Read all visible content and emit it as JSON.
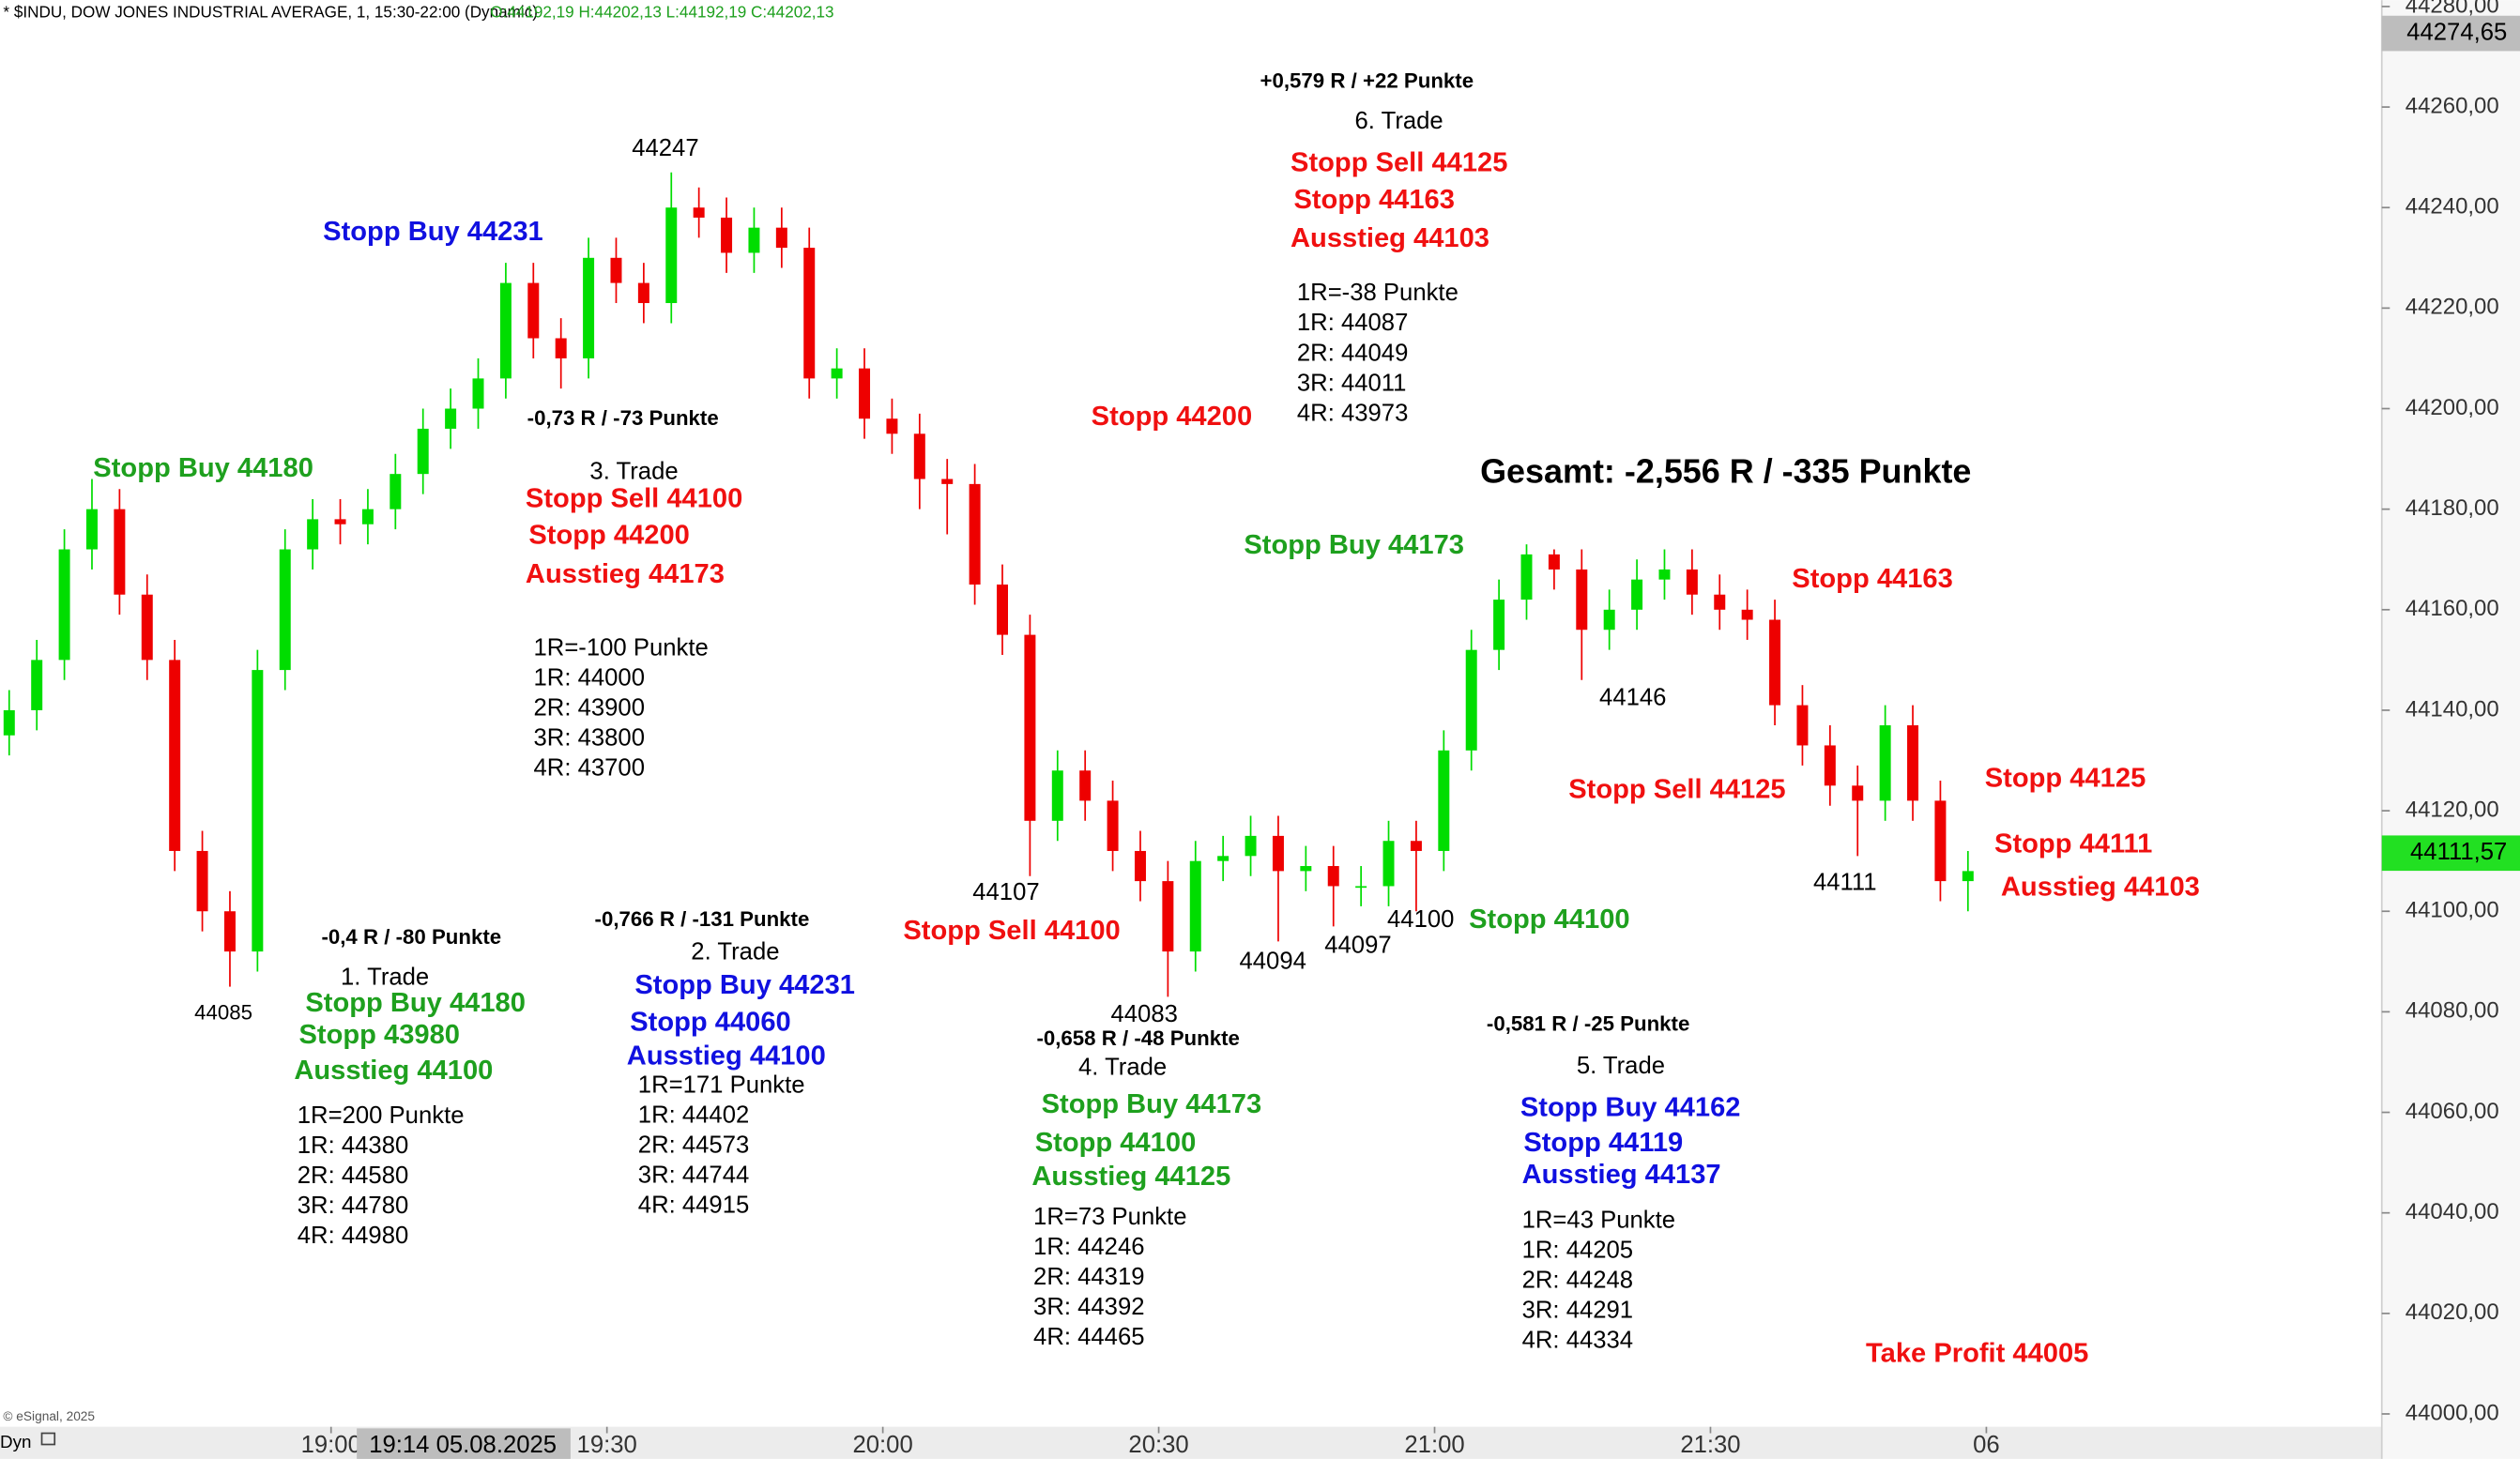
{
  "chart_data": {
    "type": "candlestick",
    "header": "* $INDU, DOW JONES INDUSTRIAL AVERAGE, 1, 15:30-22:00 (Dynamic)",
    "ohlc_label": "O:44192,19 H:44202,13 L:44192,19 C:44202,13",
    "up_color": "#00dd00",
    "down_color": "#ee0000",
    "x": [
      "18:25",
      "18:28",
      "18:31",
      "18:34",
      "18:37",
      "18:40",
      "18:43",
      "18:46",
      "18:49",
      "18:52",
      "18:55",
      "18:58",
      "19:01",
      "19:04",
      "19:07",
      "19:10",
      "19:13",
      "19:16",
      "19:19",
      "19:22",
      "19:25",
      "19:28",
      "19:31",
      "19:34",
      "19:37",
      "19:40",
      "19:43",
      "19:46",
      "19:49",
      "19:52",
      "19:55",
      "19:58",
      "20:01",
      "20:04",
      "20:07",
      "20:10",
      "20:13",
      "20:16",
      "20:19",
      "20:22",
      "20:25",
      "20:28",
      "20:31",
      "20:34",
      "20:37",
      "20:40",
      "20:43",
      "20:46",
      "20:49",
      "20:52",
      "20:55",
      "20:58",
      "21:01",
      "21:04",
      "21:07",
      "21:10",
      "21:13",
      "21:16",
      "21:19",
      "21:22",
      "21:25",
      "21:28",
      "21:31",
      "21:34",
      "21:37",
      "21:40",
      "21:43",
      "21:46",
      "21:49",
      "21:52",
      "21:55",
      "21:58"
    ],
    "open": [
      44135,
      44140,
      44150,
      44172,
      44180,
      44163,
      44150,
      44112,
      44100,
      44092,
      44148,
      44172,
      44178,
      44177,
      44180,
      44187,
      44196,
      44200,
      44206,
      44225,
      44214,
      44210,
      44230,
      44225,
      44221,
      44240,
      44238,
      44231,
      44236,
      44232,
      44206,
      44208,
      44198,
      44195,
      44186,
      44185,
      44165,
      44155,
      44118,
      44128,
      44122,
      44112,
      44106,
      44092,
      44110,
      44111,
      44115,
      44108,
      44109,
      44105,
      44105,
      44114,
      44112,
      44132,
      44152,
      44162,
      44171,
      44168,
      44156,
      44160,
      44166,
      44168,
      44163,
      44160,
      44158,
      44141,
      44133,
      44125,
      44122,
      44137,
      44122,
      44106
    ],
    "high": [
      44144,
      44154,
      44176,
      44186,
      44184,
      44167,
      44154,
      44116,
      44104,
      44152,
      44176,
      44182,
      44182,
      44184,
      44191,
      44200,
      44204,
      44210,
      44229,
      44229,
      44218,
      44234,
      44234,
      44229,
      44247,
      44244,
      44242,
      44240,
      44240,
      44236,
      44212,
      44212,
      44202,
      44199,
      44190,
      44189,
      44169,
      44159,
      44132,
      44132,
      44126,
      44116,
      44110,
      44114,
      44115,
      44119,
      44119,
      44113,
      44113,
      44109,
      44118,
      44118,
      44136,
      44156,
      44166,
      44173,
      44172,
      44172,
      44164,
      44170,
      44172,
      44172,
      44167,
      44164,
      44162,
      44145,
      44137,
      44129,
      44141,
      44141,
      44126,
      44112
    ],
    "low": [
      44131,
      44136,
      44146,
      44168,
      44159,
      44146,
      44108,
      44096,
      44085,
      44088,
      44144,
      44168,
      44173,
      44173,
      44176,
      44183,
      44192,
      44196,
      44202,
      44210,
      44204,
      44206,
      44221,
      44217,
      44217,
      44234,
      44227,
      44227,
      44228,
      44202,
      44202,
      44194,
      44191,
      44180,
      44175,
      44161,
      44151,
      44107,
      44114,
      44118,
      44108,
      44102,
      44083,
      44088,
      44106,
      44107,
      44094,
      44104,
      44097,
      44101,
      44101,
      44100,
      44108,
      44128,
      44148,
      44158,
      44164,
      44146,
      44152,
      44156,
      44162,
      44159,
      44156,
      44154,
      44137,
      44129,
      44121,
      44111,
      44118,
      44118,
      44102,
      44100
    ],
    "close": [
      44140,
      44150,
      44172,
      44180,
      44163,
      44150,
      44112,
      44100,
      44092,
      44148,
      44172,
      44178,
      44177,
      44180,
      44187,
      44196,
      44200,
      44206,
      44225,
      44214,
      44210,
      44230,
      44225,
      44221,
      44240,
      44238,
      44231,
      44236,
      44232,
      44206,
      44208,
      44198,
      44195,
      44186,
      44185,
      44165,
      44155,
      44118,
      44128,
      44122,
      44112,
      44106,
      44092,
      44110,
      44111,
      44115,
      44108,
      44109,
      44105,
      44105,
      44114,
      44112,
      44132,
      44152,
      44162,
      44171,
      44168,
      44156,
      44160,
      44166,
      44168,
      44163,
      44160,
      44158,
      44141,
      44133,
      44125,
      44122,
      44137,
      44122,
      44106,
      44108
    ],
    "xlim": [
      "18:24",
      "22:43"
    ],
    "xticks": [
      "19:00",
      "19:30",
      "20:00",
      "20:30",
      "21:00",
      "21:30",
      {
        "value": "22:00",
        "label": "06"
      }
    ],
    "ylim": [
      44000,
      44280
    ],
    "yticks": [
      {
        "value": 44000,
        "label": "44000,00"
      },
      {
        "value": 44020,
        "label": "44020,00"
      },
      {
        "value": 44040,
        "label": "44040,00"
      },
      {
        "value": 44060,
        "label": "44060,00"
      },
      {
        "value": 44080,
        "label": "44080,00"
      },
      {
        "value": 44100,
        "label": "44100,00"
      },
      {
        "value": 44120,
        "label": "44120,00"
      },
      {
        "value": 44140,
        "label": "44140,00"
      },
      {
        "value": 44160,
        "label": "44160,00"
      },
      {
        "value": 44180,
        "label": "44180,00"
      },
      {
        "value": 44200,
        "label": "44200,00"
      },
      {
        "value": 44220,
        "label": "44220,00"
      },
      {
        "value": 44240,
        "label": "44240,00"
      },
      {
        "value": 44260,
        "label": "44260,00"
      },
      {
        "value": 44280,
        "label": "44280,00"
      }
    ],
    "high_marker": {
      "value": 44274.65,
      "label": "44274,65"
    },
    "current_price": {
      "value": 44111.57,
      "label": "44111,57"
    },
    "crosshair_label": "19:14 05.08.2025",
    "footer": "© eSignal, 2025",
    "corner_label": "Dyn",
    "annotations": [
      {
        "text": "-0,4 R / -80 Punkte",
        "color": "#000000"
      },
      {
        "text": "1. Trade",
        "color": "#000000"
      },
      {
        "text": "Stopp Buy 44180",
        "color": "#1ea01e"
      },
      {
        "text": "Stopp 43980",
        "color": "#1ea01e"
      },
      {
        "text": "Ausstieg 44100",
        "color": "#1ea01e"
      },
      {
        "text": "1R=200 Punkte",
        "color": "#000000"
      },
      {
        "text": "1R: 44380",
        "color": "#000000"
      },
      {
        "text": "2R: 44580",
        "color": "#000000"
      },
      {
        "text": "3R: 44780",
        "color": "#000000"
      },
      {
        "text": "4R: 44980",
        "color": "#000000"
      },
      {
        "text": "-0,766 R / -131 Punkte",
        "color": "#000000"
      },
      {
        "text": "2. Trade",
        "color": "#000000"
      },
      {
        "text": "Stopp Buy 44231",
        "color": "#1010e0"
      },
      {
        "text": "Stopp 44060",
        "color": "#1010e0"
      },
      {
        "text": "Ausstieg 44100",
        "color": "#1010e0"
      },
      {
        "text": "1R=171 Punkte",
        "color": "#000000"
      },
      {
        "text": "1R: 44402",
        "color": "#000000"
      },
      {
        "text": "2R: 44573",
        "color": "#000000"
      },
      {
        "text": "3R: 44744",
        "color": "#000000"
      },
      {
        "text": "4R: 44915",
        "color": "#000000"
      },
      {
        "text": "-0,73 R / -73 Punkte",
        "color": "#000000"
      },
      {
        "text": "3. Trade",
        "color": "#000000"
      },
      {
        "text": "Stopp Sell 44100",
        "color": "#f01010"
      },
      {
        "text": "Stopp 44200",
        "color": "#f01010"
      },
      {
        "text": "Ausstieg 44173",
        "color": "#f01010"
      },
      {
        "text": "1R=-100 Punkte",
        "color": "#000000"
      },
      {
        "text": "1R: 44000",
        "color": "#000000"
      },
      {
        "text": "2R: 43900",
        "color": "#000000"
      },
      {
        "text": "3R: 43800",
        "color": "#000000"
      },
      {
        "text": "4R: 43700",
        "color": "#000000"
      },
      {
        "text": "-0,658 R / -48 Punkte",
        "color": "#000000"
      },
      {
        "text": "4. Trade",
        "color": "#000000"
      },
      {
        "text": "Stopp Buy 44173",
        "color": "#1ea01e"
      },
      {
        "text": "Stopp 44100",
        "color": "#1ea01e"
      },
      {
        "text": "Ausstieg 44125",
        "color": "#1ea01e"
      },
      {
        "text": "1R=73 Punkte",
        "color": "#000000"
      },
      {
        "text": "1R: 44246",
        "color": "#000000"
      },
      {
        "text": "2R: 44319",
        "color": "#000000"
      },
      {
        "text": "3R: 44392",
        "color": "#000000"
      },
      {
        "text": "4R: 44465",
        "color": "#000000"
      },
      {
        "text": "-0,581 R / -25 Punkte",
        "color": "#000000"
      },
      {
        "text": "5. Trade",
        "color": "#000000"
      },
      {
        "text": "Stopp Buy 44162",
        "color": "#1010e0"
      },
      {
        "text": "Stopp 44119",
        "color": "#1010e0"
      },
      {
        "text": "Ausstieg 44137",
        "color": "#1010e0"
      },
      {
        "text": "1R=43 Punkte",
        "color": "#000000"
      },
      {
        "text": "1R: 44205",
        "color": "#000000"
      },
      {
        "text": "2R: 44248",
        "color": "#000000"
      },
      {
        "text": "3R: 44291",
        "color": "#000000"
      },
      {
        "text": "4R: 44334",
        "color": "#000000"
      },
      {
        "text": "+0,579 R / +22 Punkte",
        "color": "#000000"
      },
      {
        "text": "6. Trade",
        "color": "#000000"
      },
      {
        "text": "Stopp Sell 44125",
        "color": "#f01010"
      },
      {
        "text": "Stopp 44163",
        "color": "#f01010"
      },
      {
        "text": "Ausstieg 44103",
        "color": "#f01010"
      },
      {
        "text": "1R=-38 Punkte",
        "color": "#000000"
      },
      {
        "text": "1R: 44087",
        "color": "#000000"
      },
      {
        "text": "2R: 44049",
        "color": "#000000"
      },
      {
        "text": "3R: 44011",
        "color": "#000000"
      },
      {
        "text": "4R: 43973",
        "color": "#000000"
      },
      {
        "text": "Stopp Buy 44231",
        "color": "#1010e0"
      },
      {
        "text": "Stopp Buy 44180",
        "color": "#1ea01e"
      },
      {
        "text": "Stopp 44200",
        "color": "#f01010"
      },
      {
        "text": "Gesamt: -2,556 R / -335 Punkte",
        "color": "#000000"
      },
      {
        "text": "Stopp Buy 44173",
        "color": "#1ea01e"
      },
      {
        "text": "Stopp 44163",
        "color": "#f01010"
      },
      {
        "text": "Stopp Sell 44125",
        "color": "#f01010"
      },
      {
        "text": "Stopp 44125",
        "color": "#f01010"
      },
      {
        "text": "Stopp 44111",
        "color": "#f01010"
      },
      {
        "text": "Ausstieg 44103",
        "color": "#f01010"
      },
      {
        "text": "Stopp Sell 44100",
        "color": "#f01010"
      },
      {
        "text": "Stopp 44100",
        "color": "#1ea01e"
      },
      {
        "text": "Take Profit 44005",
        "color": "#f01010"
      },
      {
        "text": "44247",
        "color": "#000000"
      },
      {
        "text": "44085",
        "color": "#000000"
      },
      {
        "text": "44107",
        "color": "#000000"
      },
      {
        "text": "44083",
        "color": "#000000"
      },
      {
        "text": "44094",
        "color": "#000000"
      },
      {
        "text": "44097",
        "color": "#000000"
      },
      {
        "text": "44100",
        "color": "#000000"
      },
      {
        "text": "44146",
        "color": "#000000"
      },
      {
        "text": "44111",
        "color": "#000000"
      }
    ]
  }
}
